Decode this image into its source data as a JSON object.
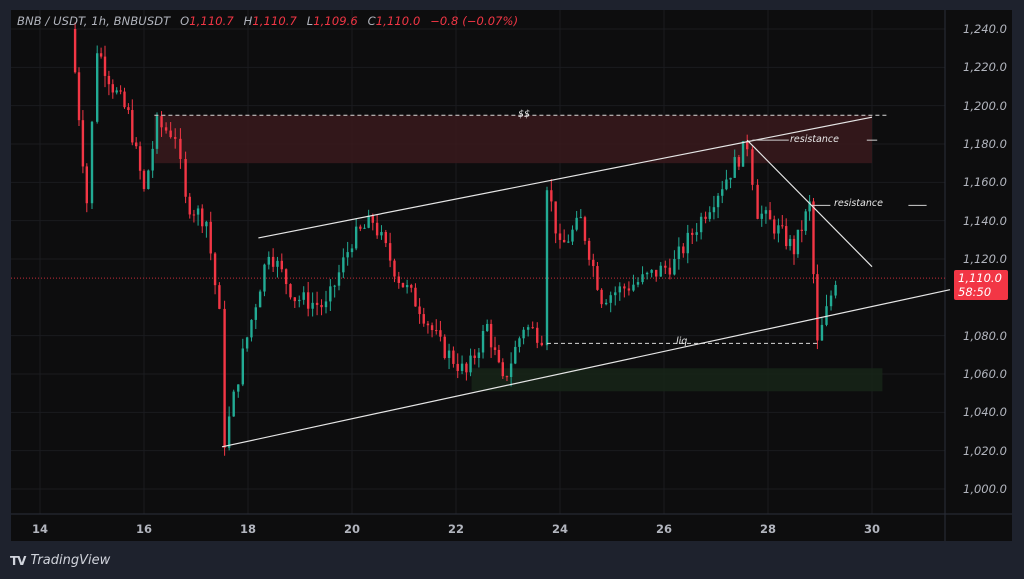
{
  "header": {
    "symbol": "BNB / USDT, 1h, BNBUSDT",
    "open_label": "O",
    "open": "1,110.7",
    "high_label": "H",
    "high": "1,110.7",
    "low_label": "L",
    "low": "1,109.6",
    "close_label": "C",
    "close": "1,110.0",
    "change": "−0.8 (−0.07%)"
  },
  "price_tag": {
    "price": "1,110.0",
    "countdown": "58:50",
    "color": "#f23645"
  },
  "annotations": {
    "ss": "$$",
    "resistance_1": "resistance",
    "resistance_2": "resistance",
    "liq": "liq"
  },
  "branding": {
    "logo_mark": "TV",
    "name": "TradingView"
  },
  "colors": {
    "up": "#22ab94",
    "down": "#f23645",
    "background": "#0d0d0e",
    "frame": "#1e222d",
    "supply_zone": "#3a1a1c",
    "demand_zone": "#182618"
  },
  "chart_data": {
    "type": "candlestick",
    "title": "BNB / USDT, 1h, BNBUSDT",
    "xlabel": "",
    "ylabel": "",
    "y_ticks": [
      "1,240.0",
      "1,220.0",
      "1,200.0",
      "1,180.0",
      "1,160.0",
      "1,140.0",
      "1,120.0",
      "1,080.0",
      "1,060.0",
      "1,040.0",
      "1,020.0",
      "1,000.0"
    ],
    "x_ticks": [
      "14",
      "16",
      "18",
      "20",
      "22",
      "24",
      "26",
      "28",
      "30"
    ],
    "ylim": [
      990,
      1250
    ],
    "grid": true,
    "last_price": 1110.0,
    "price_path": [
      {
        "day": 14.6,
        "price": 1240
      },
      {
        "day": 14.9,
        "price": 1150
      },
      {
        "day": 15.1,
        "price": 1230
      },
      {
        "day": 15.4,
        "price": 1210
      },
      {
        "day": 15.7,
        "price": 1195
      },
      {
        "day": 16.0,
        "price": 1155
      },
      {
        "day": 16.25,
        "price": 1190
      },
      {
        "day": 16.6,
        "price": 1185
      },
      {
        "day": 16.8,
        "price": 1150
      },
      {
        "day": 17.2,
        "price": 1140
      },
      {
        "day": 17.45,
        "price": 1090
      },
      {
        "day": 17.55,
        "price": 1025
      },
      {
        "day": 17.9,
        "price": 1070
      },
      {
        "day": 18.4,
        "price": 1125
      },
      {
        "day": 18.9,
        "price": 1100
      },
      {
        "day": 19.5,
        "price": 1095
      },
      {
        "day": 20.0,
        "price": 1130
      },
      {
        "day": 20.4,
        "price": 1140
      },
      {
        "day": 20.9,
        "price": 1110
      },
      {
        "day": 21.3,
        "price": 1095
      },
      {
        "day": 21.7,
        "price": 1075
      },
      {
        "day": 22.2,
        "price": 1060
      },
      {
        "day": 22.6,
        "price": 1085
      },
      {
        "day": 22.9,
        "price": 1055
      },
      {
        "day": 23.3,
        "price": 1085
      },
      {
        "day": 23.65,
        "price": 1080
      },
      {
        "day": 23.75,
        "price": 1160
      },
      {
        "day": 24.0,
        "price": 1125
      },
      {
        "day": 24.4,
        "price": 1140
      },
      {
        "day": 24.8,
        "price": 1100
      },
      {
        "day": 25.5,
        "price": 1108
      },
      {
        "day": 26.2,
        "price": 1118
      },
      {
        "day": 26.8,
        "price": 1145
      },
      {
        "day": 27.6,
        "price": 1180
      },
      {
        "day": 27.8,
        "price": 1145
      },
      {
        "day": 28.2,
        "price": 1135
      },
      {
        "day": 28.5,
        "price": 1125
      },
      {
        "day": 28.8,
        "price": 1148
      },
      {
        "day": 28.95,
        "price": 1075
      },
      {
        "day": 29.3,
        "price": 1110
      }
    ],
    "drawings": [
      {
        "type": "rectangle",
        "label": "supply zone",
        "price_top": 1195,
        "price_bottom": 1170,
        "x_from": 16.2,
        "x_to": 30.0
      },
      {
        "type": "rectangle",
        "label": "demand zone",
        "price_top": 1063,
        "price_bottom": 1051,
        "x_from": 22.3,
        "x_to": 30.2
      },
      {
        "type": "hline-dashed",
        "label": "$$",
        "price": 1195,
        "x_from": 16.2,
        "x_to": 30.3
      },
      {
        "type": "hline-dashed",
        "label": "liq",
        "price": 1076,
        "x_from": 23.75,
        "x_to": 28.95
      },
      {
        "type": "trendline",
        "label": "channel top",
        "from": {
          "day": 18.2,
          "price": 1131
        },
        "to": {
          "day": 30.0,
          "price": 1194
        }
      },
      {
        "type": "trendline",
        "label": "channel bottom",
        "from": {
          "day": 17.5,
          "price": 1022
        },
        "to": {
          "day": 31.5,
          "price": 1104
        }
      },
      {
        "type": "trendline",
        "label": "descending resistance",
        "from": {
          "day": 27.6,
          "price": 1182
        },
        "to": {
          "day": 30.0,
          "price": 1116
        }
      },
      {
        "type": "annotation",
        "label": "resistance",
        "price": 1182,
        "day": 28.6
      },
      {
        "type": "annotation",
        "label": "resistance",
        "price": 1148,
        "day": 29.5
      }
    ]
  }
}
